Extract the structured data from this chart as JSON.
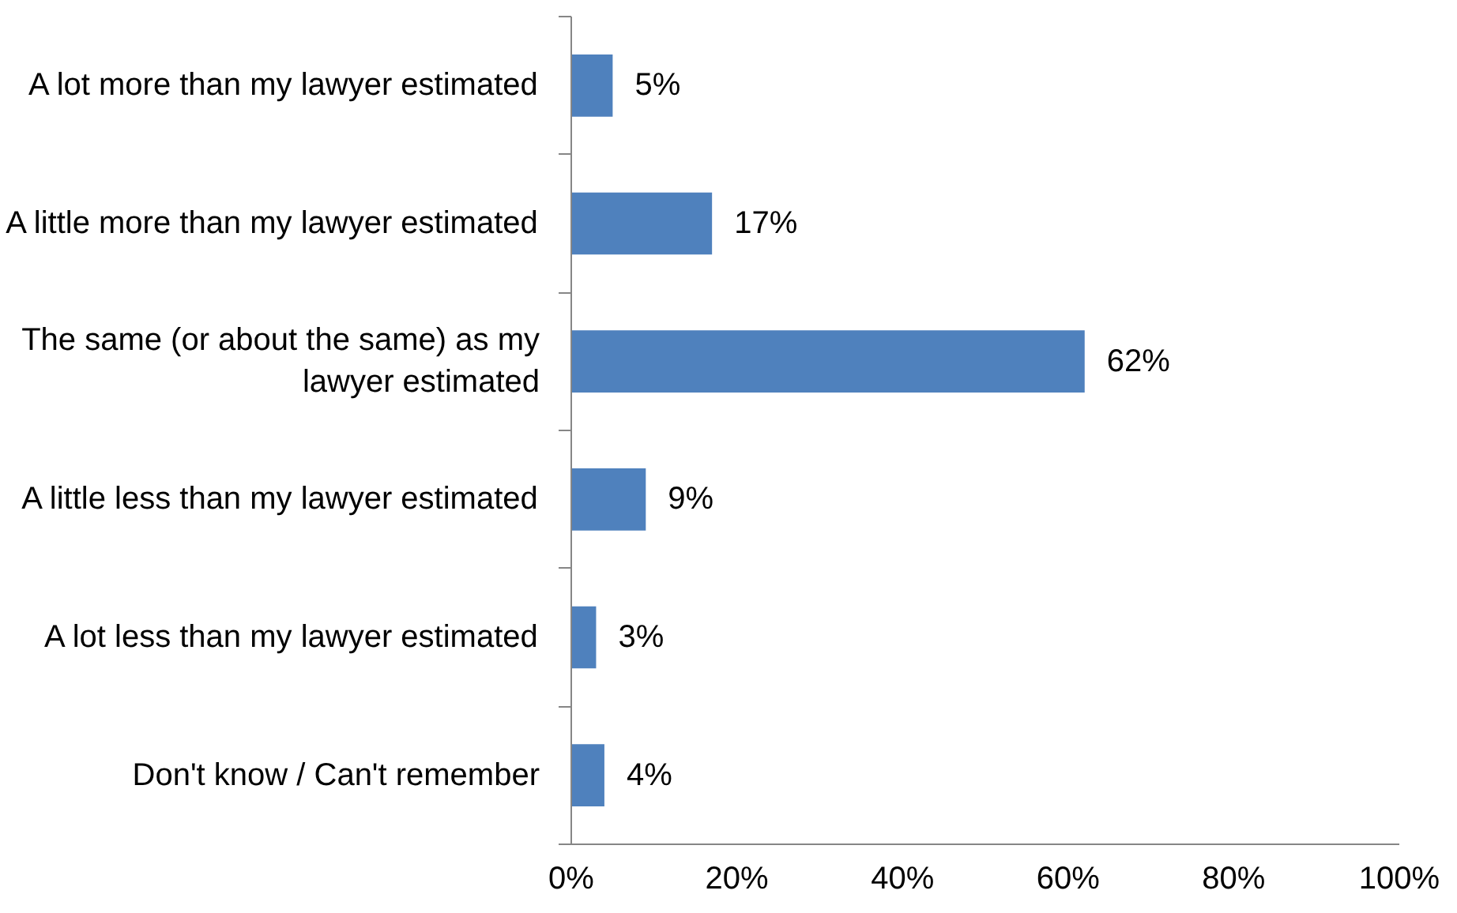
{
  "chart_data": {
    "type": "bar",
    "orientation": "horizontal",
    "categories": [
      "A lot more than my lawyer estimated",
      "A little more than my lawyer estimated",
      "The same (or about the same) as my lawyer estimated",
      "A little less than my lawyer estimated",
      "A lot less than my lawyer estimated",
      "Don't know / Can't remember"
    ],
    "values": [
      5,
      17,
      62,
      9,
      3,
      4
    ],
    "value_labels": [
      "5%",
      "17%",
      "62%",
      "9%",
      "3%",
      "4%"
    ],
    "color": "#4f81bd",
    "xlim": [
      0,
      100
    ],
    "xticks": [
      {
        "value": 0,
        "label": "0%"
      },
      {
        "value": 20,
        "label": "20%"
      },
      {
        "value": 40,
        "label": "40%"
      },
      {
        "value": 60,
        "label": "60%"
      },
      {
        "value": 80,
        "label": "80%"
      },
      {
        "value": 100,
        "label": "100%"
      }
    ],
    "grid": false
  }
}
